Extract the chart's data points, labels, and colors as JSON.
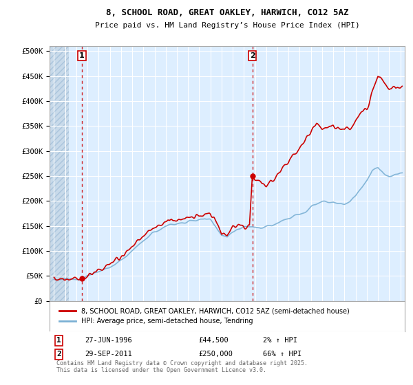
{
  "title": "8, SCHOOL ROAD, GREAT OAKLEY, HARWICH, CO12 5AZ",
  "subtitle": "Price paid vs. HM Land Registry’s House Price Index (HPI)",
  "xlim_start": 1993.6,
  "xlim_end": 2025.4,
  "ylim": [
    0,
    510000
  ],
  "yticks": [
    0,
    50000,
    100000,
    150000,
    200000,
    250000,
    300000,
    350000,
    400000,
    450000,
    500000
  ],
  "ytick_labels": [
    "£0",
    "£50K",
    "£100K",
    "£150K",
    "£200K",
    "£250K",
    "£300K",
    "£350K",
    "£400K",
    "£450K",
    "£500K"
  ],
  "sale1_year": 1996.49,
  "sale1_price": 44500,
  "sale2_year": 2011.75,
  "sale2_price": 250000,
  "sale1_label": "1",
  "sale2_label": "2",
  "legend_red": "8, SCHOOL ROAD, GREAT OAKLEY, HARWICH, CO12 5AZ (semi-detached house)",
  "legend_blue": "HPI: Average price, semi-detached house, Tendring",
  "footnote": "Contains HM Land Registry data © Crown copyright and database right 2025.\nThis data is licensed under the Open Government Licence v3.0.",
  "red_color": "#cc0000",
  "blue_color": "#7ab0d4",
  "bg_color": "#ddeeff",
  "grid_color": "#ffffff",
  "hatch_bg": "#c8daea"
}
